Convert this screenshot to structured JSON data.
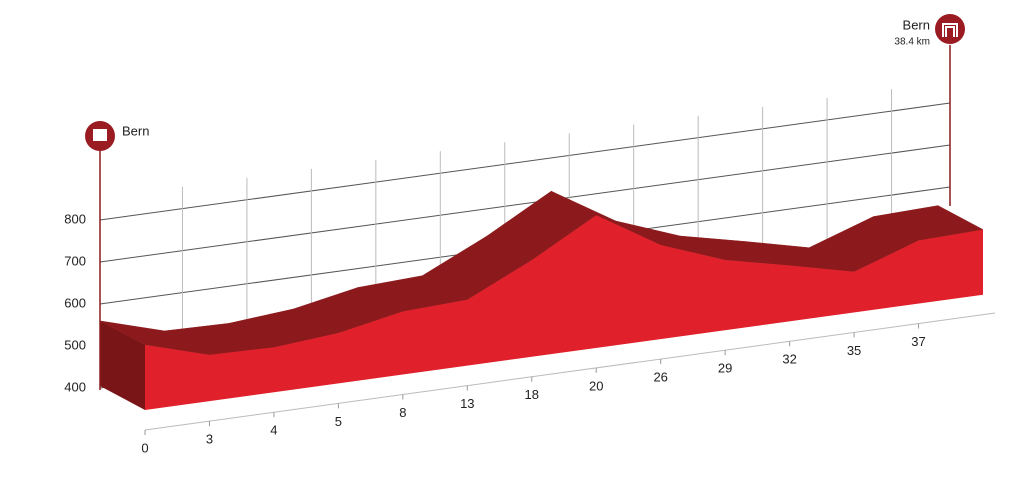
{
  "chart_data": {
    "type": "area",
    "start_label": "Bern",
    "finish_label": "Bern",
    "finish_distance": "38.4 km",
    "categories": [
      "0",
      "3",
      "4",
      "5",
      "8",
      "13",
      "18",
      "20",
      "26",
      "29",
      "32",
      "35",
      "37",
      null
    ],
    "values": [
      555,
      510,
      507,
      520,
      550,
      557,
      630,
      716,
      624,
      567,
      533,
      497,
      550,
      555
    ],
    "color": "#e0202a",
    "top_color": "#8c1a1c",
    "side_color": "#7a1517",
    "ylim": [
      400,
      800
    ],
    "yticks": [
      400,
      500,
      600,
      700,
      800
    ],
    "grid": true
  }
}
